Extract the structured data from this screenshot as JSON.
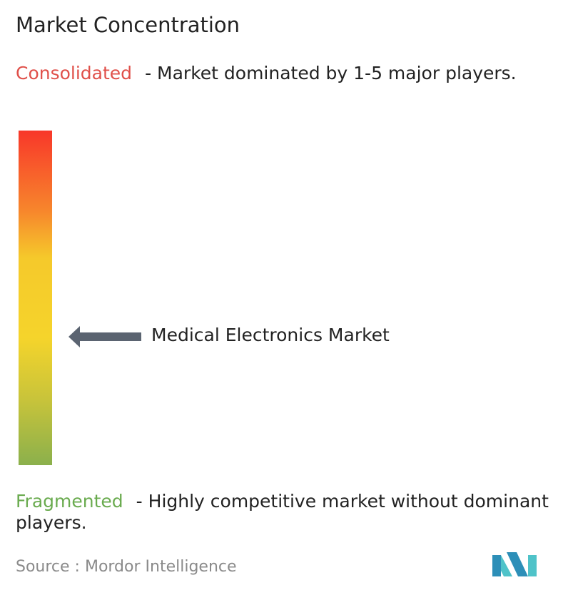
{
  "title": "Market Concentration",
  "consolidated": {
    "label": "Consolidated",
    "description": "- Market dominated by 1-5 major players."
  },
  "marker": {
    "label": "Medical Electronics Market"
  },
  "fragmented": {
    "label": "Fragmented",
    "description": "- Highly competitive market without dominant players."
  },
  "source": "Source :  Mordor Intelligence"
}
